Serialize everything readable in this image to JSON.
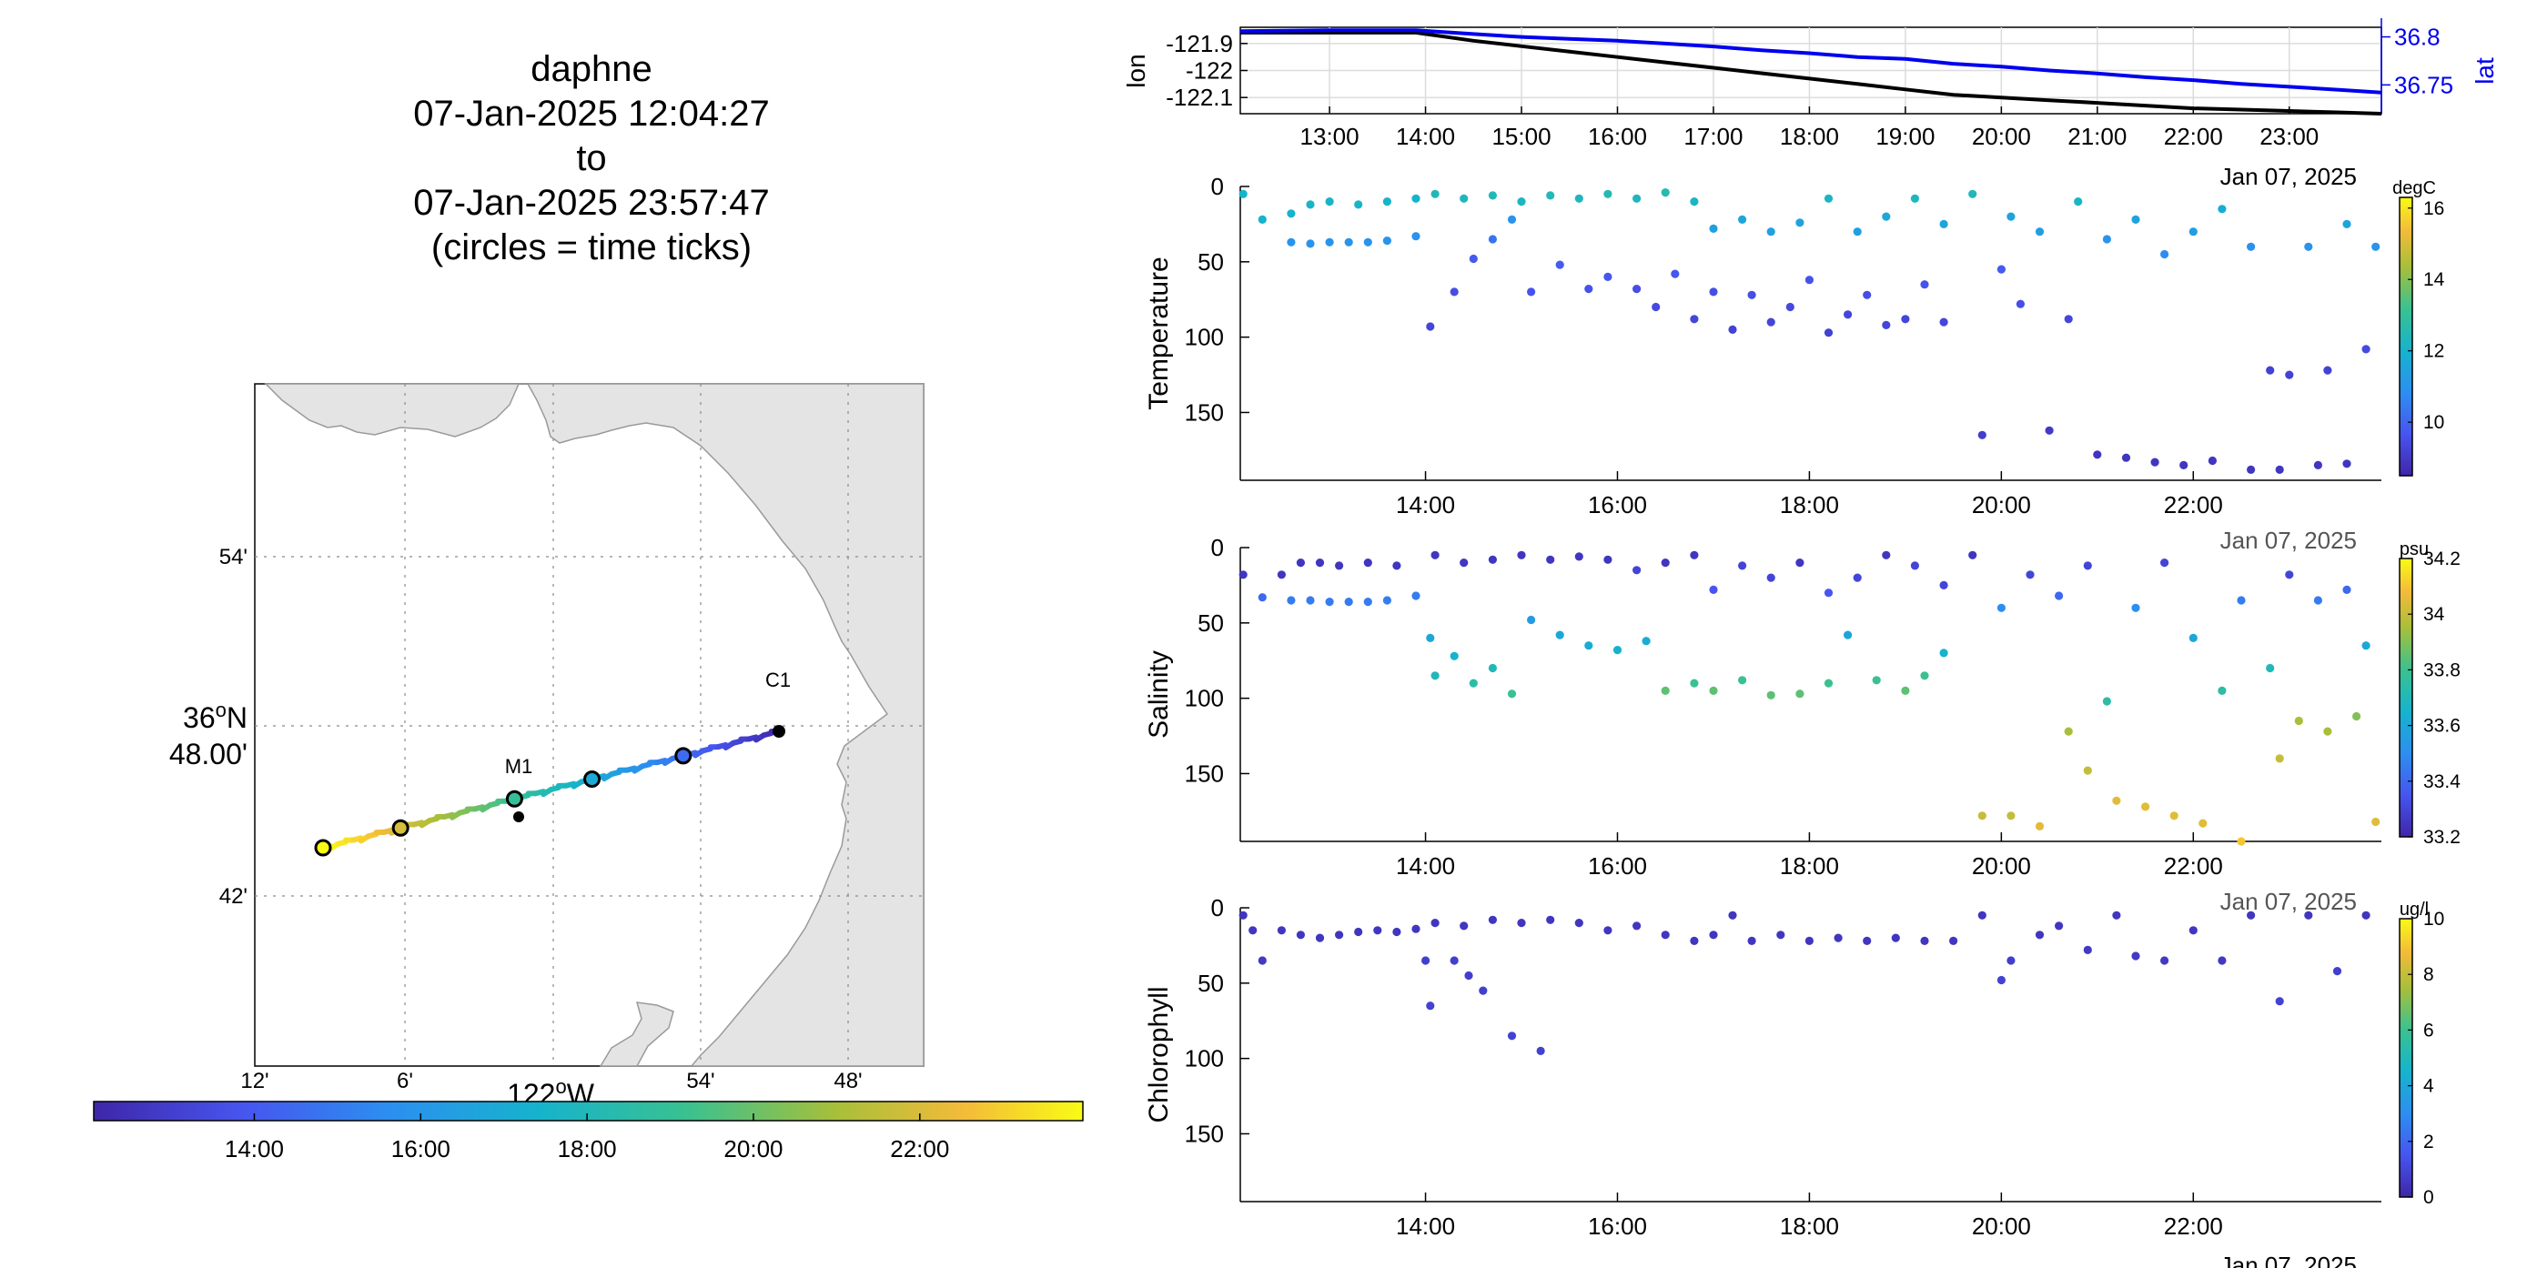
{
  "header": {
    "platform": "daphne",
    "start": "07-Jan-2025 12:04:27",
    "to": "to",
    "end": "07-Jan-2025 23:57:47",
    "note": "(circles = time ticks)"
  },
  "map": {
    "lat_ticks": [
      "54'",
      "48.00'",
      "42'"
    ],
    "lat_deg": "36",
    "lat_deg_sup": "o",
    "lat_deg_suffix": "N",
    "lon_ticks": [
      "12'",
      "6'",
      "54'",
      "48'"
    ],
    "lon_label": "122",
    "lon_label_sup": "o",
    "lon_label_suffix": "W",
    "station_labels": [
      "C1",
      "M1"
    ],
    "colors": [
      "#3e26a8",
      "#4a55ef",
      "#2c8ff0",
      "#18b4c4",
      "#3ec28d",
      "#a9bf3a",
      "#f5b93a",
      "#f9fb15"
    ]
  },
  "time_colorbar": {
    "ticks": [
      "14:00",
      "16:00",
      "18:00",
      "20:00",
      "22:00"
    ]
  },
  "chart_data": [
    {
      "type": "line",
      "name": "position",
      "x_ticks": [
        "13:00",
        "14:00",
        "15:00",
        "16:00",
        "17:00",
        "18:00",
        "19:00",
        "20:00",
        "21:00",
        "22:00",
        "23:00"
      ],
      "x_date": "Jan 07, 2025",
      "ylabel_left": "lon",
      "ylabel_right": "lat",
      "yticks_left": [
        "-121.9",
        "-122",
        "-122.1"
      ],
      "yticks_right": [
        "36.8",
        "36.75"
      ],
      "ylim_left": [
        -122.16,
        -121.84
      ],
      "ylim_right": [
        36.72,
        36.81
      ],
      "x": [
        12.07,
        13.0,
        13.9,
        14.5,
        15.0,
        15.5,
        16.0,
        16.5,
        17.0,
        17.5,
        18.0,
        18.5,
        19.0,
        19.5,
        20.0,
        20.5,
        21.0,
        21.5,
        22.0,
        22.5,
        23.0,
        23.5,
        23.96
      ],
      "series": [
        {
          "name": "lon",
          "color": "#000000",
          "values": [
            -121.86,
            -121.86,
            -121.86,
            -121.89,
            -121.91,
            -121.93,
            -121.95,
            -121.97,
            -121.99,
            -122.01,
            -122.03,
            -122.05,
            -122.07,
            -122.09,
            -122.1,
            -122.11,
            -122.12,
            -122.13,
            -122.14,
            -122.145,
            -122.15,
            -122.155,
            -122.16
          ]
        },
        {
          "name": "lat",
          "color": "#0000ee",
          "values": [
            36.806,
            36.807,
            36.807,
            36.803,
            36.8,
            36.798,
            36.796,
            36.793,
            36.79,
            36.786,
            36.783,
            36.779,
            36.777,
            36.772,
            36.769,
            36.765,
            36.762,
            36.758,
            36.755,
            36.751,
            36.748,
            36.745,
            36.742
          ]
        }
      ]
    },
    {
      "type": "scatter",
      "ylabel": "Temperature",
      "unit": "degC",
      "x_ticks": [
        "14:00",
        "16:00",
        "18:00",
        "20:00",
        "22:00"
      ],
      "x_date": "Jan 07, 2025",
      "y_ticks": [
        "0",
        "50",
        "100",
        "150"
      ],
      "ylim": [
        0,
        195
      ],
      "clim": [
        8.5,
        16.3
      ],
      "cticks": [
        "16",
        "14",
        "12",
        "10"
      ],
      "points": [
        [
          12.1,
          5,
          12.0
        ],
        [
          12.3,
          22,
          12.0
        ],
        [
          12.6,
          18,
          12.0
        ],
        [
          12.8,
          12,
          12.1
        ],
        [
          13.0,
          10,
          12.1
        ],
        [
          13.3,
          12,
          12.1
        ],
        [
          13.6,
          10,
          12.1
        ],
        [
          13.9,
          8,
          12.0
        ],
        [
          12.6,
          37,
          11.0
        ],
        [
          12.8,
          38,
          11.0
        ],
        [
          13.0,
          37,
          11.0
        ],
        [
          13.2,
          37,
          11.0
        ],
        [
          13.4,
          37,
          11.0
        ],
        [
          13.6,
          36,
          11.0
        ],
        [
          13.9,
          33,
          11.0
        ],
        [
          14.05,
          93,
          9.3
        ],
        [
          14.3,
          70,
          9.5
        ],
        [
          14.5,
          48,
          9.8
        ],
        [
          14.7,
          35,
          10.3
        ],
        [
          14.9,
          22,
          11.0
        ],
        [
          15.1,
          70,
          9.6
        ],
        [
          15.4,
          52,
          9.8
        ],
        [
          15.7,
          68,
          9.6
        ],
        [
          15.9,
          60,
          9.7
        ],
        [
          16.2,
          68,
          9.5
        ],
        [
          16.4,
          80,
          9.4
        ],
        [
          16.6,
          58,
          9.7
        ],
        [
          16.8,
          88,
          9.3
        ],
        [
          17.0,
          70,
          9.5
        ],
        [
          17.2,
          95,
          9.2
        ],
        [
          17.4,
          72,
          9.5
        ],
        [
          17.6,
          90,
          9.3
        ],
        [
          17.8,
          80,
          9.4
        ],
        [
          18.0,
          62,
          9.6
        ],
        [
          18.2,
          97,
          9.2
        ],
        [
          18.4,
          85,
          9.3
        ],
        [
          18.6,
          72,
          9.5
        ],
        [
          18.8,
          92,
          9.3
        ],
        [
          19.0,
          88,
          9.3
        ],
        [
          19.2,
          65,
          9.6
        ],
        [
          19.4,
          90,
          9.3
        ],
        [
          14.1,
          5,
          12.4
        ],
        [
          14.4,
          8,
          12.3
        ],
        [
          14.7,
          6,
          12.4
        ],
        [
          15.0,
          10,
          12.2
        ],
        [
          15.3,
          6,
          12.4
        ],
        [
          15.6,
          8,
          12.3
        ],
        [
          15.9,
          5,
          12.5
        ],
        [
          16.2,
          8,
          12.3
        ],
        [
          16.5,
          4,
          12.6
        ],
        [
          16.8,
          10,
          12.2
        ],
        [
          17.0,
          28,
          11.4
        ],
        [
          17.3,
          22,
          11.6
        ],
        [
          17.6,
          30,
          11.4
        ],
        [
          17.9,
          24,
          11.5
        ],
        [
          18.2,
          8,
          12.2
        ],
        [
          18.5,
          30,
          11.4
        ],
        [
          18.8,
          20,
          11.6
        ],
        [
          19.1,
          8,
          12.3
        ],
        [
          19.4,
          25,
          11.5
        ],
        [
          19.7,
          5,
          12.4
        ],
        [
          19.8,
          165,
          9.1
        ],
        [
          20.0,
          55,
          9.8
        ],
        [
          20.2,
          78,
          9.5
        ],
        [
          20.5,
          162,
          9.0
        ],
        [
          20.7,
          88,
          9.3
        ],
        [
          21.0,
          178,
          8.9
        ],
        [
          21.3,
          180,
          8.9
        ],
        [
          21.6,
          183,
          8.9
        ],
        [
          21.9,
          185,
          8.9
        ],
        [
          22.2,
          182,
          8.9
        ],
        [
          22.6,
          188,
          8.9
        ],
        [
          22.9,
          188,
          8.9
        ],
        [
          23.3,
          185,
          8.9
        ],
        [
          23.6,
          184,
          8.9
        ],
        [
          20.1,
          20,
          11.5
        ],
        [
          20.4,
          30,
          11.3
        ],
        [
          20.8,
          10,
          12.1
        ],
        [
          21.1,
          35,
          11.0
        ],
        [
          21.4,
          22,
          11.5
        ],
        [
          21.7,
          45,
          10.8
        ],
        [
          22.0,
          30,
          11.3
        ],
        [
          22.3,
          15,
          11.8
        ],
        [
          22.6,
          40,
          10.9
        ],
        [
          22.8,
          122,
          9.2
        ],
        [
          23.0,
          125,
          9.2
        ],
        [
          23.2,
          40,
          11.0
        ],
        [
          23.4,
          122,
          9.2
        ],
        [
          23.6,
          25,
          11.5
        ],
        [
          23.8,
          108,
          9.4
        ],
        [
          23.9,
          40,
          11.0
        ]
      ]
    },
    {
      "type": "scatter",
      "ylabel": "Salinity",
      "unit": "psu",
      "x_ticks": [
        "14:00",
        "16:00",
        "18:00",
        "20:00",
        "22:00"
      ],
      "x_date": "Jan 07, 2025",
      "y_ticks": [
        "0",
        "50",
        "100",
        "150"
      ],
      "ylim": [
        0,
        195
      ],
      "clim": [
        33.2,
        34.2
      ],
      "cticks": [
        "34.2",
        "34",
        "33.8",
        "33.6",
        "33.4",
        "33.2"
      ],
      "points": [
        [
          12.1,
          18,
          33.25
        ],
        [
          12.3,
          33,
          33.4
        ],
        [
          12.5,
          18,
          33.25
        ],
        [
          12.7,
          10,
          33.25
        ],
        [
          12.9,
          10,
          33.25
        ],
        [
          13.1,
          12,
          33.25
        ],
        [
          13.4,
          10,
          33.25
        ],
        [
          13.7,
          12,
          33.25
        ],
        [
          12.6,
          35,
          33.45
        ],
        [
          12.8,
          35,
          33.45
        ],
        [
          13.0,
          36,
          33.45
        ],
        [
          13.2,
          36,
          33.45
        ],
        [
          13.4,
          36,
          33.45
        ],
        [
          13.6,
          35,
          33.45
        ],
        [
          13.9,
          32,
          33.45
        ],
        [
          14.05,
          60,
          33.6
        ],
        [
          14.1,
          85,
          33.7
        ],
        [
          14.3,
          72,
          33.65
        ],
        [
          14.5,
          90,
          33.75
        ],
        [
          14.7,
          80,
          33.7
        ],
        [
          14.9,
          97,
          33.8
        ],
        [
          15.1,
          48,
          33.55
        ],
        [
          15.4,
          58,
          33.6
        ],
        [
          15.7,
          65,
          33.62
        ],
        [
          16.0,
          68,
          33.64
        ],
        [
          16.3,
          62,
          33.62
        ],
        [
          16.5,
          95,
          33.85
        ],
        [
          16.8,
          90,
          33.8
        ],
        [
          17.0,
          95,
          33.85
        ],
        [
          17.3,
          88,
          33.8
        ],
        [
          17.6,
          98,
          33.85
        ],
        [
          17.9,
          97,
          33.85
        ],
        [
          18.2,
          90,
          33.8
        ],
        [
          18.4,
          58,
          33.6
        ],
        [
          18.7,
          88,
          33.8
        ],
        [
          19.0,
          95,
          33.85
        ],
        [
          19.2,
          85,
          33.8
        ],
        [
          19.4,
          70,
          33.65
        ],
        [
          14.1,
          5,
          33.25
        ],
        [
          14.4,
          10,
          33.25
        ],
        [
          14.7,
          8,
          33.25
        ],
        [
          15.0,
          5,
          33.25
        ],
        [
          15.3,
          8,
          33.25
        ],
        [
          15.6,
          6,
          33.25
        ],
        [
          15.9,
          8,
          33.25
        ],
        [
          16.2,
          15,
          33.3
        ],
        [
          16.5,
          10,
          33.25
        ],
        [
          16.8,
          5,
          33.25
        ],
        [
          17.0,
          28,
          33.35
        ],
        [
          17.3,
          12,
          33.3
        ],
        [
          17.6,
          20,
          33.3
        ],
        [
          17.9,
          10,
          33.25
        ],
        [
          18.2,
          30,
          33.35
        ],
        [
          18.5,
          20,
          33.3
        ],
        [
          18.8,
          5,
          33.25
        ],
        [
          19.1,
          12,
          33.3
        ],
        [
          19.4,
          25,
          33.3
        ],
        [
          19.7,
          5,
          33.25
        ],
        [
          19.8,
          178,
          34.0
        ],
        [
          20.1,
          178,
          34.0
        ],
        [
          20.4,
          185,
          34.05
        ],
        [
          20.7,
          122,
          33.95
        ],
        [
          20.9,
          148,
          34.0
        ],
        [
          21.2,
          168,
          34.05
        ],
        [
          21.5,
          172,
          34.05
        ],
        [
          21.8,
          178,
          34.05
        ],
        [
          22.1,
          183,
          34.05
        ],
        [
          22.5,
          195,
          34.1
        ],
        [
          22.9,
          140,
          34.0
        ],
        [
          23.1,
          115,
          33.95
        ],
        [
          23.4,
          122,
          33.95
        ],
        [
          23.7,
          112,
          33.9
        ],
        [
          23.9,
          182,
          34.05
        ],
        [
          20.0,
          40,
          33.5
        ],
        [
          20.3,
          18,
          33.3
        ],
        [
          20.6,
          32,
          33.4
        ],
        [
          20.9,
          12,
          33.3
        ],
        [
          21.1,
          102,
          33.75
        ],
        [
          21.4,
          40,
          33.5
        ],
        [
          21.7,
          10,
          33.3
        ],
        [
          22.0,
          60,
          33.6
        ],
        [
          22.3,
          95,
          33.75
        ],
        [
          22.5,
          35,
          33.45
        ],
        [
          22.8,
          80,
          33.7
        ],
        [
          23.0,
          18,
          33.3
        ],
        [
          23.3,
          35,
          33.45
        ],
        [
          23.6,
          28,
          33.4
        ],
        [
          23.8,
          65,
          33.6
        ]
      ]
    },
    {
      "type": "scatter",
      "ylabel": "Chlorophyll",
      "unit": "ug/l",
      "x_ticks": [
        "14:00",
        "16:00",
        "18:00",
        "20:00",
        "22:00"
      ],
      "x_date": "Jan 07, 2025",
      "y_ticks": [
        "0",
        "50",
        "100",
        "150"
      ],
      "ylim": [
        0,
        195
      ],
      "clim": [
        0,
        10
      ],
      "cticks": [
        "10",
        "8",
        "6",
        "4",
        "2",
        "0"
      ],
      "points": [
        [
          12.1,
          5,
          0.5
        ],
        [
          12.2,
          15,
          0.5
        ],
        [
          12.3,
          35,
          0.6
        ],
        [
          12.5,
          15,
          0.5
        ],
        [
          12.7,
          18,
          0.5
        ],
        [
          12.9,
          20,
          0.5
        ],
        [
          13.1,
          18,
          0.5
        ],
        [
          13.3,
          16,
          0.5
        ],
        [
          13.5,
          15,
          0.5
        ],
        [
          13.7,
          16,
          0.5
        ],
        [
          13.9,
          14,
          0.5
        ],
        [
          14.0,
          35,
          0.8
        ],
        [
          14.05,
          65,
          0.9
        ],
        [
          14.3,
          35,
          0.8
        ],
        [
          14.45,
          45,
          0.8
        ],
        [
          14.6,
          55,
          0.8
        ],
        [
          14.9,
          85,
          0.9
        ],
        [
          15.2,
          95,
          0.9
        ],
        [
          14.1,
          10,
          0.5
        ],
        [
          14.4,
          12,
          0.5
        ],
        [
          14.7,
          8,
          0.5
        ],
        [
          15.0,
          10,
          0.5
        ],
        [
          15.3,
          8,
          0.5
        ],
        [
          15.6,
          10,
          0.5
        ],
        [
          15.9,
          15,
          0.5
        ],
        [
          16.2,
          12,
          0.5
        ],
        [
          16.5,
          18,
          0.5
        ],
        [
          16.8,
          22,
          0.5
        ],
        [
          17.0,
          18,
          0.5
        ],
        [
          17.2,
          5,
          0.5
        ],
        [
          17.4,
          22,
          0.5
        ],
        [
          17.7,
          18,
          0.5
        ],
        [
          18.0,
          22,
          0.5
        ],
        [
          18.3,
          20,
          0.5
        ],
        [
          18.6,
          22,
          0.5
        ],
        [
          18.9,
          20,
          0.5
        ],
        [
          19.2,
          22,
          0.5
        ],
        [
          19.5,
          22,
          0.5
        ],
        [
          19.8,
          5,
          0.5
        ],
        [
          20.0,
          48,
          0.9
        ],
        [
          20.1,
          35,
          0.8
        ],
        [
          20.4,
          18,
          0.5
        ],
        [
          20.6,
          12,
          0.5
        ],
        [
          20.9,
          28,
          0.6
        ],
        [
          21.2,
          5,
          0.5
        ],
        [
          21.4,
          32,
          0.6
        ],
        [
          21.7,
          35,
          0.6
        ],
        [
          22.0,
          15,
          0.5
        ],
        [
          22.3,
          35,
          0.6
        ],
        [
          22.6,
          5,
          0.5
        ],
        [
          22.9,
          62,
          0.9
        ],
        [
          23.2,
          5,
          0.5
        ],
        [
          23.5,
          42,
          0.8
        ],
        [
          23.8,
          5,
          0.5
        ]
      ]
    }
  ]
}
